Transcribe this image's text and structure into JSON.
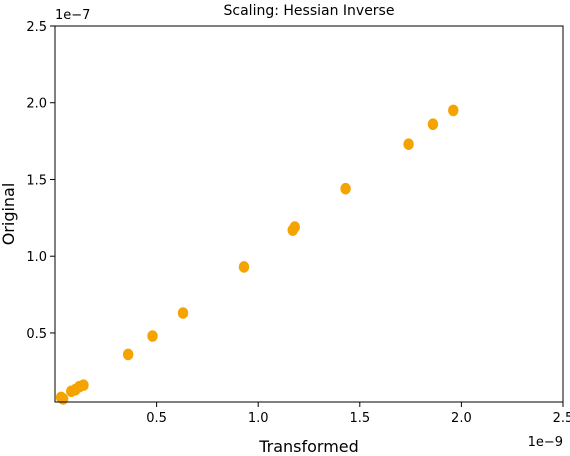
{
  "chart_data": {
    "type": "scatter",
    "title": "Scaling: Hessian Inverse",
    "xlabel": "Transformed",
    "ylabel": "Original",
    "x_offset_text": "1e−9",
    "y_offset_text": "1e−7",
    "x_multiplier": 1e-09,
    "y_multiplier": 1e-07,
    "xlim": [
      0.0,
      2.5
    ],
    "ylim": [
      0.05,
      2.5
    ],
    "xticks": [
      0.5,
      1.0,
      1.5,
      2.0,
      2.5
    ],
    "xtick_labels": [
      "0.5",
      "1.0",
      "1.5",
      "2.0",
      "2.5"
    ],
    "yticks": [
      0.5,
      1.0,
      1.5,
      2.0,
      2.5
    ],
    "ytick_labels": [
      "0.5",
      "1.0",
      "1.5",
      "2.0",
      "2.5"
    ],
    "grid": false,
    "marker_color": "#f5a300",
    "points": [
      {
        "x": 0.03,
        "y": 0.08
      },
      {
        "x": 0.04,
        "y": 0.07
      },
      {
        "x": 0.08,
        "y": 0.12
      },
      {
        "x": 0.1,
        "y": 0.13
      },
      {
        "x": 0.12,
        "y": 0.15
      },
      {
        "x": 0.14,
        "y": 0.16
      },
      {
        "x": 0.36,
        "y": 0.36
      },
      {
        "x": 0.48,
        "y": 0.48
      },
      {
        "x": 0.63,
        "y": 0.63
      },
      {
        "x": 0.93,
        "y": 0.93
      },
      {
        "x": 1.17,
        "y": 1.17
      },
      {
        "x": 1.18,
        "y": 1.19
      },
      {
        "x": 1.43,
        "y": 1.44
      },
      {
        "x": 1.74,
        "y": 1.73
      },
      {
        "x": 1.86,
        "y": 1.86
      },
      {
        "x": 1.96,
        "y": 1.95
      }
    ]
  }
}
